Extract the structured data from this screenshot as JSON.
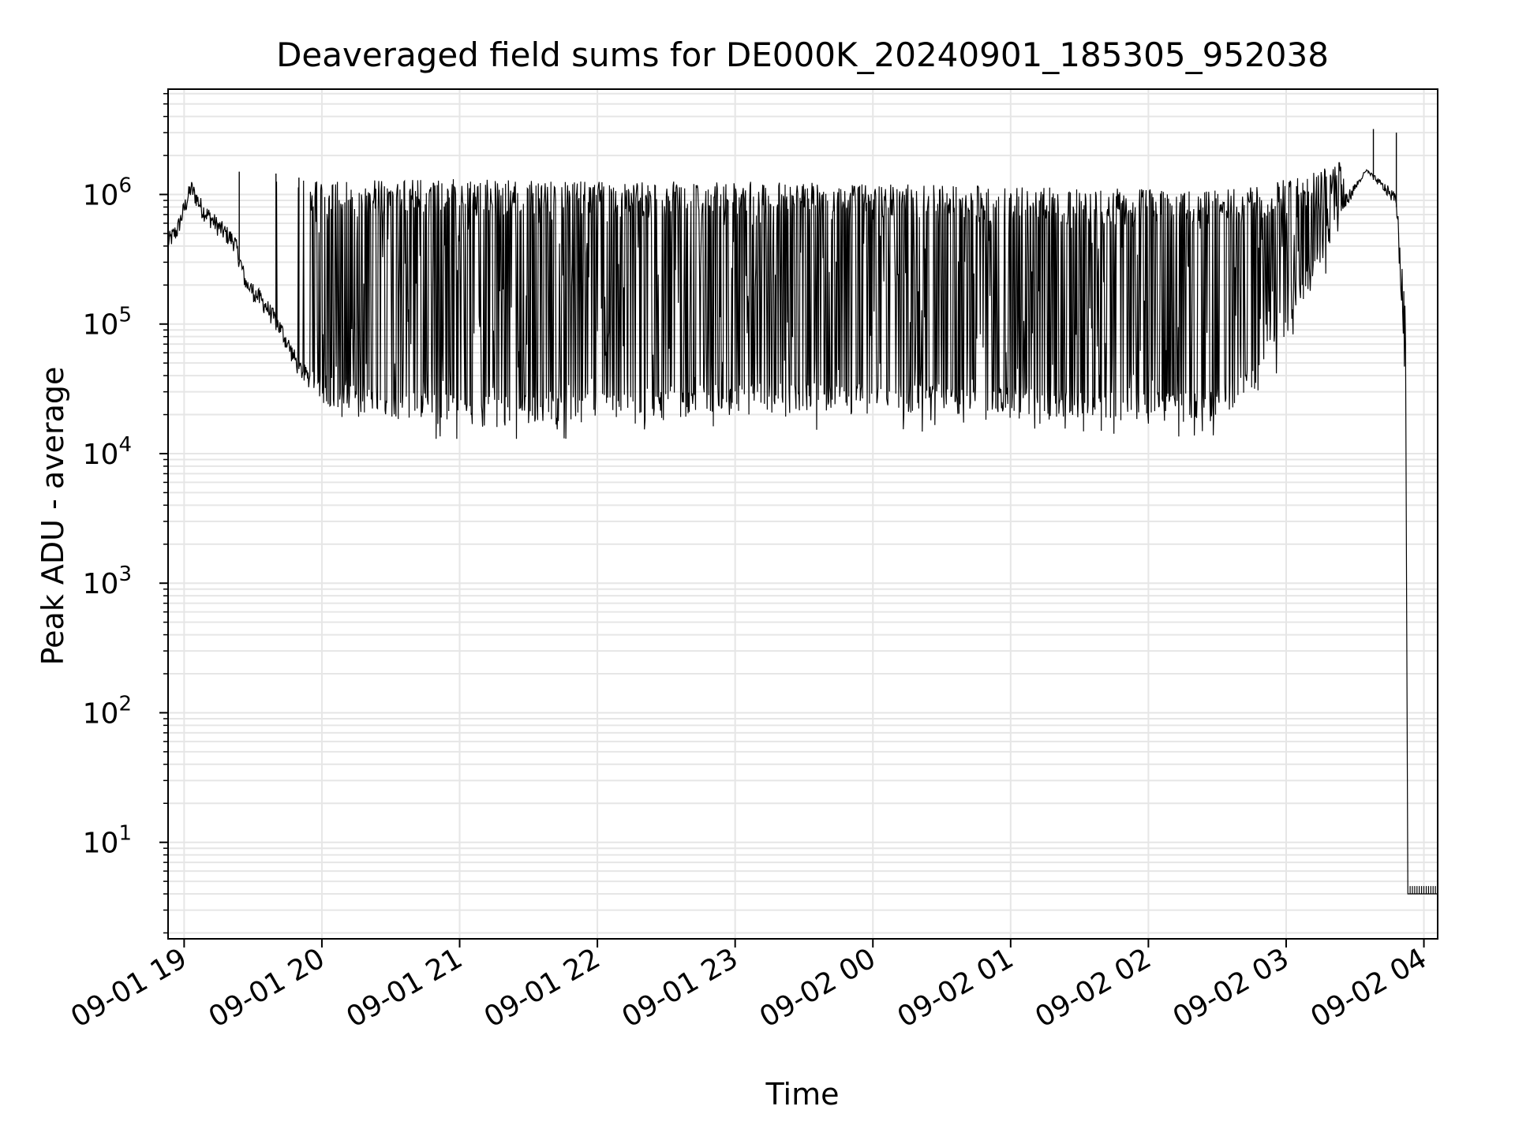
{
  "chart_data": {
    "type": "line",
    "title": "Deaveraged field sums for DE000K_20240901_185305_952038",
    "xlabel": "Time",
    "ylabel": "Peak ADU - average",
    "yscale": "log",
    "grid": true,
    "legend": "none",
    "line_color": "#000000",
    "xlim": [
      "2024-09-01 18:53",
      "2024-09-02 04:06"
    ],
    "ylim": [
      1.8,
      6500000
    ],
    "xticks": [
      {
        "t": "2024-09-01 19:00",
        "label": "09-01 19"
      },
      {
        "t": "2024-09-01 20:00",
        "label": "09-01 20"
      },
      {
        "t": "2024-09-01 21:00",
        "label": "09-01 21"
      },
      {
        "t": "2024-09-01 22:00",
        "label": "09-01 22"
      },
      {
        "t": "2024-09-01 23:00",
        "label": "09-01 23"
      },
      {
        "t": "2024-09-02 00:00",
        "label": "09-02 00"
      },
      {
        "t": "2024-09-02 01:00",
        "label": "09-02 01"
      },
      {
        "t": "2024-09-02 02:00",
        "label": "09-02 02"
      },
      {
        "t": "2024-09-02 03:00",
        "label": "09-02 03"
      },
      {
        "t": "2024-09-02 04:00",
        "label": "09-02 04"
      }
    ],
    "yticks": [
      {
        "value": 10,
        "base": "10",
        "exp": "1"
      },
      {
        "value": 100,
        "base": "10",
        "exp": "2"
      },
      {
        "value": 1000,
        "base": "10",
        "exp": "3"
      },
      {
        "value": 10000,
        "base": "10",
        "exp": "4"
      },
      {
        "value": 100000,
        "base": "10",
        "exp": "5"
      },
      {
        "value": 1000000,
        "base": "10",
        "exp": "6"
      }
    ],
    "series": [
      {
        "points": [
          [
            "2024-09-01 18:53",
            420000
          ],
          [
            "2024-09-01 18:57",
            520000
          ],
          [
            "2024-09-01 19:03",
            1100000
          ],
          [
            "2024-09-01 19:08",
            750000
          ],
          [
            "2024-09-01 19:15",
            550000
          ],
          [
            "2024-09-01 19:22",
            420000
          ],
          [
            "2024-09-01 19:27",
            200000
          ],
          [
            "2024-09-01 19:35",
            140000
          ],
          [
            "2024-09-01 19:42",
            90000
          ],
          [
            "2024-09-01 19:50",
            45000
          ],
          [
            "2024-09-01 20:00",
            30000
          ],
          [
            "2024-09-01 20:20",
            25000
          ],
          [
            "2024-09-01 20:40",
            22000
          ],
          [
            "2024-09-01 21:00",
            20000
          ],
          [
            "2024-09-01 21:30",
            20000
          ],
          [
            "2024-09-01 22:00",
            22000
          ],
          [
            "2024-09-01 23:00",
            25000
          ],
          [
            "2024-09-02 00:00",
            25000
          ],
          [
            "2024-09-02 01:00",
            24000
          ],
          [
            "2024-09-02 01:30",
            22000
          ],
          [
            "2024-09-02 02:00",
            21000
          ],
          [
            "2024-09-02 02:30",
            22000
          ],
          [
            "2024-09-02 02:45",
            35000
          ],
          [
            "2024-09-02 03:00",
            90000
          ],
          [
            "2024-09-02 03:10",
            220000
          ],
          [
            "2024-09-02 03:20",
            500000
          ],
          [
            "2024-09-02 03:35",
            1500000
          ],
          [
            "2024-09-02 03:48",
            800000
          ],
          [
            "2024-09-02 03:52",
            30000
          ],
          [
            "2024-09-02 03:53",
            4
          ],
          [
            "2024-09-02 04:06",
            4
          ]
        ],
        "envelope_top": [
          [
            "2024-09-01 19:30",
            1200000
          ],
          [
            "2024-09-01 20:00",
            1250000
          ],
          [
            "2024-09-01 21:00",
            1250000
          ],
          [
            "2024-09-01 22:00",
            1200000
          ],
          [
            "2024-09-01 23:00",
            1200000
          ],
          [
            "2024-09-02 00:00",
            1150000
          ],
          [
            "2024-09-02 01:00",
            1100000
          ],
          [
            "2024-09-02 02:00",
            1050000
          ],
          [
            "2024-09-02 02:40",
            1050000
          ],
          [
            "2024-09-02 03:00",
            1300000
          ],
          [
            "2024-09-02 03:20",
            1700000
          ]
        ],
        "spikes": [
          [
            "2024-09-01 19:24",
            1500000
          ],
          [
            "2024-09-01 19:40",
            1450000
          ],
          [
            "2024-09-01 19:50",
            1350000
          ],
          [
            "2024-09-02 03:38",
            3200000
          ],
          [
            "2024-09-02 03:48",
            3000000
          ]
        ],
        "envelope_bottom_min": 13000
      }
    ]
  }
}
